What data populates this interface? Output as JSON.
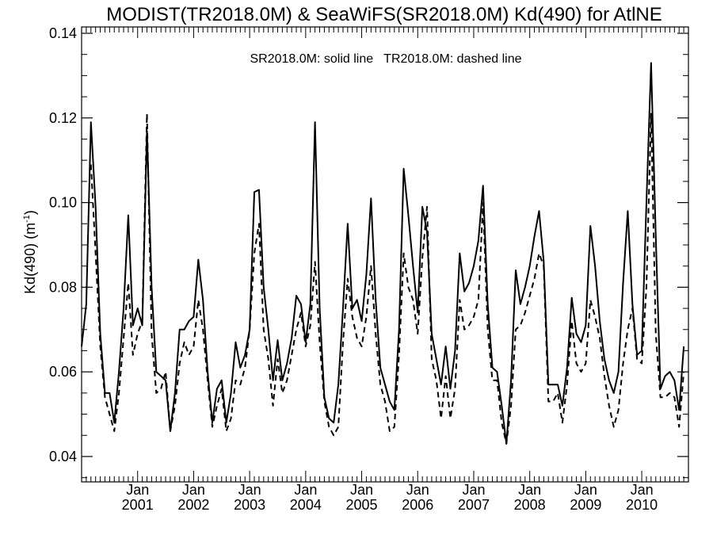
{
  "chart_data": {
    "type": "line",
    "title": "MODIST(TR2018.0M) & SeaWiFS(SR2018.0M)  Kd(490) for AtlNE",
    "annotation": "SR2018.0M: solid line   TR2018.0M: dashed line",
    "ylabel_main": "Kd(490) (m",
    "ylabel_sup": "-1",
    "ylabel_close": ")",
    "xlabel": "",
    "ylim": [
      0.034,
      0.1415
    ],
    "x_range": [
      2000.0,
      2010.8333
    ],
    "yticks": [
      "0.04",
      "0.06",
      "0.08",
      "0.10",
      "0.12",
      "0.14"
    ],
    "xtick_month": "Jan",
    "xticks": [
      "2001",
      "2002",
      "2003",
      "2004",
      "2005",
      "2006",
      "2007",
      "2008",
      "2009",
      "2010"
    ],
    "grid": false,
    "x_start": "2000-01",
    "x_step": "1 month",
    "series": [
      {
        "name": "SR2018.0M",
        "style": "solid",
        "values": [
          0.066,
          0.076,
          0.119,
          0.099,
          0.069,
          0.055,
          0.055,
          0.048,
          0.06,
          0.075,
          0.097,
          0.071,
          0.075,
          0.071,
          0.117,
          0.08,
          0.06,
          0.059,
          0.058,
          0.046,
          0.055,
          0.07,
          0.07,
          0.072,
          0.073,
          0.0865,
          0.077,
          0.06,
          0.048,
          0.056,
          0.058,
          0.048,
          0.055,
          0.067,
          0.061,
          0.064,
          0.07,
          0.1025,
          0.103,
          0.08,
          0.07,
          0.058,
          0.0675,
          0.058,
          0.062,
          0.068,
          0.078,
          0.076,
          0.067,
          0.076,
          0.119,
          0.075,
          0.054,
          0.049,
          0.048,
          0.057,
          0.075,
          0.095,
          0.075,
          0.077,
          0.072,
          0.083,
          0.101,
          0.077,
          0.061,
          0.057,
          0.053,
          0.051,
          0.07,
          0.108,
          0.097,
          0.085,
          0.074,
          0.099,
          0.093,
          0.069,
          0.063,
          0.057,
          0.066,
          0.056,
          0.065,
          0.088,
          0.079,
          0.081,
          0.085,
          0.091,
          0.104,
          0.076,
          0.061,
          0.06,
          0.052,
          0.043,
          0.058,
          0.084,
          0.076,
          0.08,
          0.085,
          0.092,
          0.098,
          0.086,
          0.057,
          0.057,
          0.057,
          0.052,
          0.061,
          0.0775,
          0.069,
          0.067,
          0.071,
          0.0945,
          0.085,
          0.072,
          0.063,
          0.058,
          0.055,
          0.06,
          0.081,
          0.098,
          0.076,
          0.064,
          0.065,
          0.1,
          0.133,
          0.092,
          0.056,
          0.059,
          0.06,
          0.058,
          0.051,
          0.066
        ],
        "color": "#000000"
      },
      {
        "name": "TR2018.0M",
        "style": "dashed",
        "values": [
          null,
          null,
          0.109,
          0.088,
          0.066,
          0.054,
          0.05,
          0.046,
          0.055,
          0.068,
          0.081,
          0.064,
          0.069,
          0.072,
          0.121,
          0.069,
          0.055,
          0.056,
          0.06,
          0.046,
          0.052,
          0.062,
          0.067,
          0.064,
          0.066,
          0.077,
          0.07,
          0.058,
          0.047,
          0.052,
          0.056,
          0.046,
          0.049,
          0.058,
          0.057,
          0.061,
          0.07,
          0.088,
          0.095,
          0.07,
          0.063,
          0.052,
          0.063,
          0.055,
          0.058,
          0.064,
          0.07,
          0.074,
          0.066,
          0.071,
          0.086,
          0.067,
          0.053,
          0.047,
          0.045,
          0.047,
          0.067,
          0.082,
          0.073,
          0.068,
          0.066,
          0.073,
          0.085,
          0.069,
          0.057,
          0.053,
          0.046,
          0.047,
          0.064,
          0.088,
          0.08,
          0.077,
          0.069,
          0.087,
          0.099,
          0.063,
          0.058,
          0.049,
          0.059,
          0.049,
          0.056,
          0.077,
          0.07,
          0.071,
          0.073,
          0.077,
          0.1,
          0.07,
          0.058,
          0.058,
          0.048,
          0.043,
          0.052,
          0.07,
          0.071,
          0.074,
          0.078,
          0.082,
          0.088,
          0.085,
          0.053,
          0.053,
          0.055,
          0.048,
          0.057,
          0.072,
          0.062,
          0.06,
          0.062,
          0.077,
          0.073,
          0.068,
          0.059,
          0.052,
          0.047,
          0.051,
          0.062,
          0.07,
          0.075,
          0.063,
          0.062,
          0.08,
          0.121,
          0.069,
          0.054,
          0.054,
          0.055,
          0.054,
          0.047,
          0.06
        ],
        "color": "#000000"
      }
    ]
  }
}
